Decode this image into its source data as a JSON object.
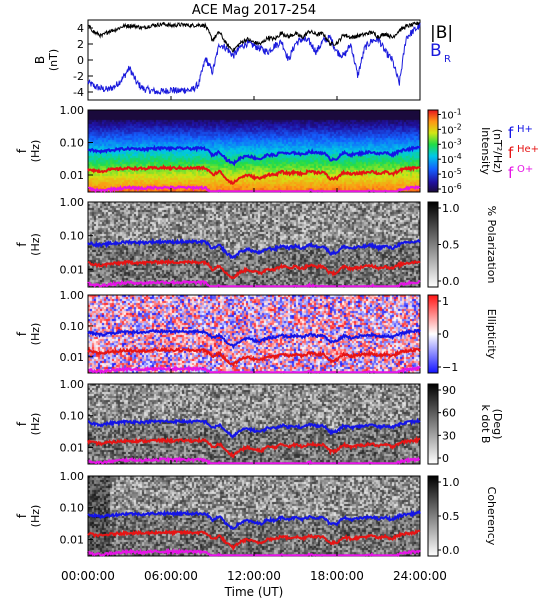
{
  "figure": {
    "title": "ACE Mag 2017-254"
  },
  "colors": {
    "btotal": "#000000",
    "br": "#1a1adc",
    "fH": "#1414e6",
    "fHe": "#e61414",
    "fO": "#e614e6",
    "axis": "#000000"
  },
  "chart_data": [
    {
      "type": "line",
      "panel": "B",
      "ylabel_main": "B",
      "ylabel_unit": "(nT)",
      "ylim": [
        -5,
        5
      ],
      "yticks": [
        "4",
        "2",
        "0",
        "-2",
        "-4"
      ],
      "ytick_values": [
        4,
        2,
        0,
        -2,
        -4
      ],
      "legend": {
        "b_total": "|B|",
        "br_main": "B",
        "br_sub": "R"
      },
      "x_hours": [
        0,
        0.5,
        1,
        1.5,
        2,
        2.5,
        3,
        3.5,
        4,
        4.5,
        5,
        5.5,
        6,
        6.5,
        7,
        7.5,
        8,
        8.5,
        9,
        9.5,
        10,
        10.5,
        11,
        11.5,
        12,
        12.5,
        13,
        13.5,
        14,
        14.5,
        15,
        15.5,
        16,
        16.5,
        17,
        17.5,
        18,
        18.5,
        19,
        19.5,
        20,
        20.5,
        21,
        21.5,
        22,
        22.5,
        23,
        23.5,
        24
      ],
      "series": [
        {
          "name": "|B|",
          "values": [
            4.3,
            3.4,
            3.0,
            3.6,
            3.8,
            4.2,
            4.3,
            4.2,
            4.0,
            4.3,
            4.4,
            4.5,
            4.3,
            4.4,
            4.4,
            4.3,
            4.4,
            4.3,
            2.5,
            3.5,
            2.0,
            1.2,
            2.1,
            2.6,
            2.2,
            2.0,
            2.8,
            2.6,
            3.4,
            2.9,
            3.3,
            2.8,
            3.6,
            3.2,
            3.3,
            2.0,
            2.1,
            3.2,
            2.8,
            3.0,
            3.2,
            3.5,
            2.9,
            3.3,
            2.8,
            3.7,
            4.2,
            4.4,
            4.7
          ]
        },
        {
          "name": "B_R",
          "values": [
            -2.8,
            -3.3,
            -3.6,
            -3.7,
            -3.2,
            -2.3,
            -1.0,
            -2.8,
            -3.6,
            -3.8,
            -4.0,
            -3.9,
            -3.7,
            -3.9,
            -3.7,
            -3.8,
            -3.0,
            0.2,
            -1.5,
            2.0,
            1.5,
            0.5,
            1.6,
            2.1,
            1.8,
            1.4,
            1.0,
            1.8,
            2.3,
            0.0,
            2.1,
            2.6,
            2.3,
            1.0,
            2.4,
            2.8,
            1.0,
            0.5,
            2.0,
            -2.0,
            1.5,
            2.4,
            2.6,
            1.0,
            0.0,
            -3.0,
            2.8,
            3.6,
            4.3
          ]
        }
      ]
    },
    {
      "type": "heatmap",
      "panel": "Intensity",
      "ylabel_main": "f",
      "ylabel_unit": "(Hz)",
      "yticks": [
        "1.00",
        "0.10",
        "0.01"
      ],
      "ytick_values": [
        1.0,
        0.1,
        0.01
      ],
      "ylim": [
        0.003,
        1.0
      ],
      "scale": "log",
      "colorbar": {
        "label": "Intensity",
        "sublabel": "(nT²/Hz)",
        "tick_base": "10",
        "tick_exps": [
          "-1",
          "-2",
          "-3",
          "-4",
          "-5",
          "-6"
        ],
        "range": [
          -6.2,
          -0.7
        ]
      },
      "legend": {
        "h_main": "f",
        "h_sub": "H+",
        "he_main": "f",
        "he_sub": "He+",
        "o_main": "f",
        "o_sub": "O+"
      }
    },
    {
      "type": "heatmap",
      "panel": "Polarization",
      "ylabel_main": "f",
      "ylabel_unit": "(Hz)",
      "yticks": [
        "1.00",
        "0.10",
        "0.01"
      ],
      "ytick_values": [
        1.0,
        0.1,
        0.01
      ],
      "ylim": [
        0.003,
        1.0
      ],
      "scale": "log",
      "colorbar": {
        "label": "% Polarization",
        "ticks": [
          "1.0",
          "0.5",
          "0.0"
        ],
        "range": [
          0,
          1
        ]
      }
    },
    {
      "type": "heatmap",
      "panel": "Ellipticity",
      "ylabel_main": "f",
      "ylabel_unit": "(Hz)",
      "yticks": [
        "1.00",
        "0.10",
        "0.01"
      ],
      "ytick_values": [
        1.0,
        0.1,
        0.01
      ],
      "ylim": [
        0.003,
        1.0
      ],
      "scale": "log",
      "colorbar": {
        "label": "Ellipticity",
        "ticks": [
          "1",
          "0",
          "−1"
        ],
        "range": [
          -1,
          1
        ]
      }
    },
    {
      "type": "heatmap",
      "panel": "k dot B",
      "ylabel_main": "f",
      "ylabel_unit": "(Hz)",
      "yticks": [
        "1.00",
        "0.10",
        "0.01"
      ],
      "ytick_values": [
        1.0,
        0.1,
        0.01
      ],
      "ylim": [
        0.003,
        1.0
      ],
      "scale": "log",
      "colorbar": {
        "label": "k dot B",
        "sublabel": "(Deg)",
        "ticks": [
          "90",
          "60",
          "30",
          "0"
        ],
        "range": [
          0,
          90
        ]
      }
    },
    {
      "type": "heatmap",
      "panel": "Coherency",
      "ylabel_main": "f",
      "ylabel_unit": "(Hz)",
      "yticks": [
        "1.00",
        "0.10",
        "0.01"
      ],
      "ytick_values": [
        1.0,
        0.1,
        0.01
      ],
      "ylim": [
        0.003,
        1.0
      ],
      "scale": "log",
      "colorbar": {
        "label": "Coherency",
        "ticks": [
          "1.0",
          "0.5",
          "0.0"
        ],
        "range": [
          0,
          1
        ]
      }
    }
  ],
  "gyro": {
    "x_hours": [
      0,
      0.5,
      1,
      1.5,
      2,
      2.5,
      3,
      3.5,
      4,
      4.5,
      5,
      5.5,
      6,
      6.5,
      7,
      7.5,
      8,
      8.5,
      9,
      9.5,
      10,
      10.5,
      11,
      11.5,
      12,
      12.5,
      13,
      13.5,
      14,
      14.5,
      15,
      15.5,
      16,
      16.5,
      17,
      17.5,
      18,
      18.5,
      19,
      19.5,
      20,
      20.5,
      21,
      21.5,
      22,
      22.5,
      23,
      23.5,
      24
    ],
    "fH_hz": [
      0.062,
      0.055,
      0.052,
      0.058,
      0.06,
      0.063,
      0.065,
      0.064,
      0.062,
      0.065,
      0.066,
      0.067,
      0.065,
      0.066,
      0.066,
      0.065,
      0.066,
      0.065,
      0.04,
      0.052,
      0.03,
      0.022,
      0.033,
      0.04,
      0.034,
      0.031,
      0.042,
      0.04,
      0.05,
      0.044,
      0.049,
      0.042,
      0.053,
      0.048,
      0.049,
      0.03,
      0.032,
      0.048,
      0.042,
      0.045,
      0.048,
      0.052,
      0.044,
      0.049,
      0.042,
      0.055,
      0.062,
      0.065,
      0.07
    ]
  },
  "x_axis": {
    "label": "Time (UT)",
    "ticks": [
      "00:00:00",
      "06:00:00",
      "12:00:00",
      "18:00:00",
      "24:00:00"
    ],
    "tick_values": [
      0,
      6,
      12,
      18,
      24
    ],
    "range": [
      0,
      24
    ]
  }
}
